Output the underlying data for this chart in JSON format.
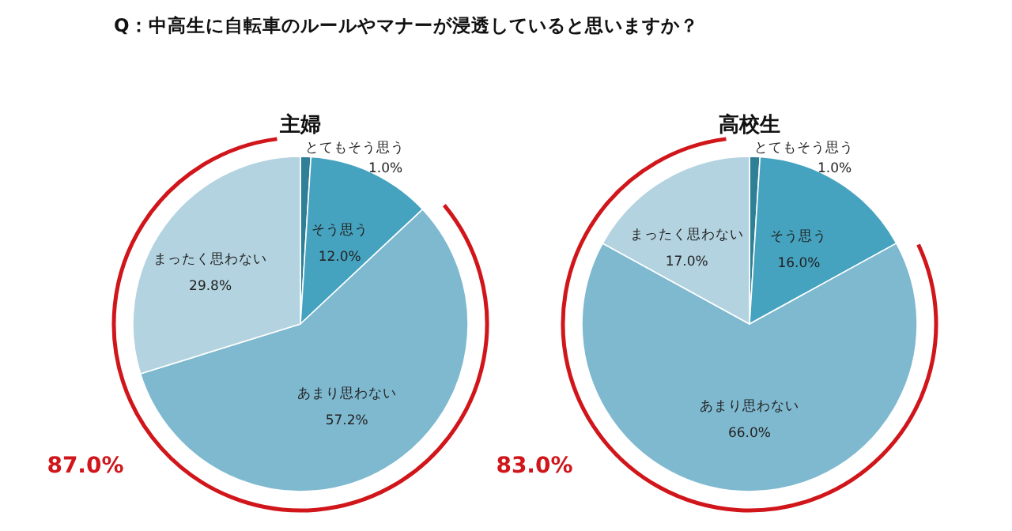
{
  "chart_data": [
    {
      "type": "pie",
      "title": "主婦",
      "categories": [
        "とてもそう思う",
        "そう思う",
        "あまり思わない",
        "まったく思わない"
      ],
      "values": [
        1.0,
        12.0,
        57.2,
        29.8
      ],
      "value_labels": [
        "1.0%",
        "12.0%",
        "57.2%",
        "29.8%"
      ],
      "colors": [
        "#2f7f96",
        "#45a3c0",
        "#7fb9d0",
        "#b3d3e0"
      ],
      "annotations": [
        "Q：中高生に自転車のルールやマナーが浸透していると思いますか？",
        "87.0%"
      ]
    },
    {
      "type": "pie",
      "title": "高校生",
      "categories": [
        "とてもそう思う",
        "そう思う",
        "あまり思わない",
        "まったく思わない"
      ],
      "values": [
        1.0,
        16.0,
        66.0,
        17.0
      ],
      "value_labels": [
        "1.0%",
        "16.0%",
        "66.0%",
        "17.0%"
      ],
      "colors": [
        "#2f7f96",
        "#45a3c0",
        "#7fb9d0",
        "#b3d3e0"
      ],
      "annotations": [
        "83.0%"
      ]
    }
  ]
}
